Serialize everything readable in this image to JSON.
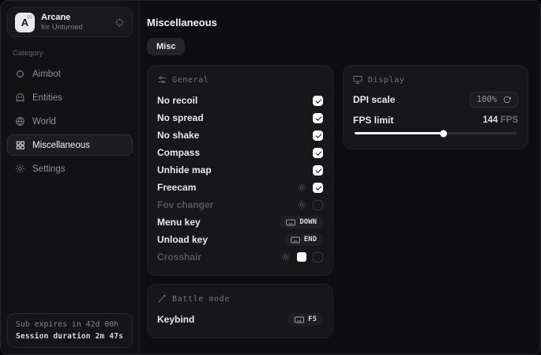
{
  "app": {
    "name": "Arcane",
    "subtitle": "for Unturned",
    "logo_letter": "A"
  },
  "sidebar": {
    "category_label": "Category",
    "items": [
      {
        "label": "Aimbot",
        "icon": "crosshair-icon",
        "active": false
      },
      {
        "label": "Entities",
        "icon": "entities-icon",
        "active": false
      },
      {
        "label": "World",
        "icon": "globe-icon",
        "active": false
      },
      {
        "label": "Miscellaneous",
        "icon": "grid-icon",
        "active": true
      },
      {
        "label": "Settings",
        "icon": "gear-icon",
        "active": false
      }
    ],
    "footer": {
      "sub_expires": "Sub expires in 42d 00h",
      "session_duration": "Session duration 2m 47s"
    }
  },
  "main": {
    "title": "Miscellaneous",
    "tabs": [
      {
        "label": "Misc",
        "active": true
      }
    ],
    "general": {
      "header": "General",
      "rows": [
        {
          "label": "No recoil",
          "type": "toggle",
          "checked": true,
          "dimmed": false
        },
        {
          "label": "No spread",
          "type": "toggle",
          "checked": true,
          "dimmed": false
        },
        {
          "label": "No shake",
          "type": "toggle",
          "checked": true,
          "dimmed": false
        },
        {
          "label": "Compass",
          "type": "toggle",
          "checked": true,
          "dimmed": false
        },
        {
          "label": "Unhide map",
          "type": "toggle",
          "checked": true,
          "dimmed": false
        },
        {
          "label": "Freecam",
          "type": "toggle-config",
          "checked": true,
          "dimmed": false
        },
        {
          "label": "Fov changer",
          "type": "toggle-config",
          "checked": false,
          "dimmed": true
        },
        {
          "label": "Menu key",
          "type": "keybind",
          "key": "DOWN"
        },
        {
          "label": "Unload key",
          "type": "keybind",
          "key": "END"
        },
        {
          "label": "Crosshair",
          "type": "color-toggle-config",
          "checked": false,
          "dimmed": true,
          "color": "#ffffff"
        }
      ]
    },
    "display": {
      "header": "Display",
      "dpi_label": "DPI scale",
      "dpi_value": "100%",
      "fps_label": "FPS limit",
      "fps_value": "144",
      "fps_unit": "FPS",
      "fps_slider_percent": 55
    },
    "battle": {
      "header": "Battle mode",
      "keybind_label": "Keybind",
      "keybind_key": "F5"
    }
  },
  "colors": {
    "checkbox_checked": "#fafafa",
    "crosshair_swatch": "#ffffff",
    "card_background": "#17171a",
    "active_item_background": "#1d1d20"
  }
}
